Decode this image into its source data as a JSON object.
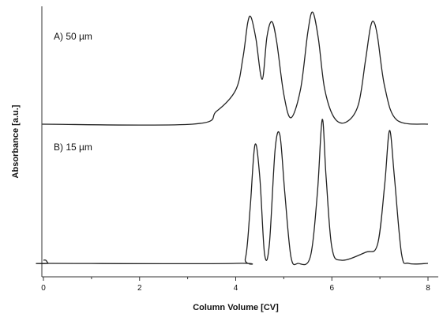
{
  "chart_data": {
    "type": "line",
    "title": "",
    "xlabel": "Column Volume [CV]",
    "ylabel": "Absorbance [a.u.]",
    "xlim": [
      0,
      8.2
    ],
    "xticks": [
      "0",
      "2",
      "4",
      "6",
      "8"
    ],
    "y_tick_labels": false,
    "grid": false,
    "stacked_traces": true,
    "series": [
      {
        "name": "A) 50 µm",
        "baseline": 0,
        "x": [
          -0.1,
          3.1,
          3.6,
          4.0,
          4.15,
          4.25,
          4.32,
          4.42,
          4.55,
          4.65,
          4.75,
          4.85,
          5.0,
          5.15,
          5.35,
          5.5,
          5.6,
          5.72,
          5.85,
          6.05,
          6.3,
          6.55,
          6.7,
          6.8,
          6.87,
          6.95,
          7.1,
          7.35,
          8.0
        ],
        "y": [
          0,
          0,
          0.12,
          0.32,
          0.62,
          0.95,
          1.0,
          0.8,
          0.42,
          0.82,
          0.96,
          0.78,
          0.28,
          0.06,
          0.33,
          0.86,
          1.05,
          0.8,
          0.33,
          0.06,
          0.02,
          0.18,
          0.6,
          0.9,
          0.96,
          0.82,
          0.35,
          0.04,
          0.0
        ]
      },
      {
        "name": "B) 15 µm",
        "baseline": 0,
        "x": [
          0.0,
          0.05,
          0.1,
          0.15,
          4.0,
          4.2,
          4.3,
          4.4,
          4.5,
          4.6,
          4.7,
          4.82,
          4.92,
          5.02,
          5.15,
          5.3,
          5.55,
          5.7,
          5.8,
          5.88,
          6.0,
          6.2,
          6.7,
          6.95,
          7.1,
          7.2,
          7.3,
          7.45,
          7.6,
          8.0
        ],
        "y": [
          0.02,
          0.02,
          0,
          0,
          0,
          0.03,
          0.35,
          0.75,
          0.55,
          0.06,
          0.12,
          0.72,
          0.81,
          0.45,
          0.04,
          0.0,
          0.04,
          0.45,
          0.91,
          0.55,
          0.1,
          0.02,
          0.07,
          0.12,
          0.5,
          0.84,
          0.55,
          0.06,
          0.0,
          0.0
        ]
      }
    ]
  }
}
